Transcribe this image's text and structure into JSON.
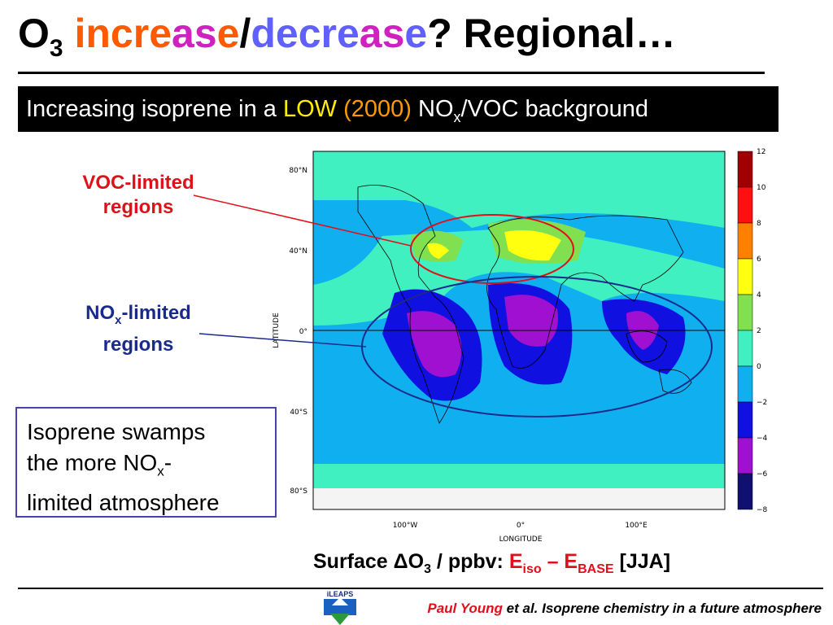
{
  "title": {
    "o": "O",
    "sub3": "3",
    "inc_parts": [
      "inc",
      "re",
      "as",
      "e"
    ],
    "slash": "/",
    "dec_parts": [
      "dec",
      "re",
      "as",
      "e"
    ],
    "rest": "? Regional…"
  },
  "banner": {
    "prefix": "Increasing isoprene in a ",
    "low": "LOW",
    "year": "(2000)",
    "nox": " NO",
    "x": "x",
    "suffix": "/VOC background"
  },
  "voc_label": {
    "line1": "VOC-limited",
    "line2": "regions"
  },
  "nox_label": {
    "no": "NO",
    "x": "x",
    "line1_rest": "-limited",
    "line2": "regions"
  },
  "box": {
    "line1": "Isoprene swamps",
    "line2a": "the more NO",
    "line2x": "x",
    "line2b": "-",
    "line3": "limited atmosphere"
  },
  "map": {
    "lat_labels": [
      "80°N",
      "40°N",
      "0°",
      "40°S",
      "80°S"
    ],
    "lon_labels": [
      "100°W",
      "0°",
      "100°E"
    ],
    "xlabel": "LONGITUDE",
    "ylabel": "LATITUDE",
    "colorbar_ticks": [
      "12",
      "10",
      "8",
      "6",
      "4",
      "2",
      "0",
      "−2",
      "−4",
      "−6",
      "−8"
    ],
    "colorbar_colors": [
      "#a00000",
      "#ff1010",
      "#ff7f00",
      "#ffff10",
      "#80e050",
      "#40f0c0",
      "#10b0f0",
      "#1010e0",
      "#a010d0",
      "#101070"
    ]
  },
  "caption": {
    "pre": "Surface ΔO",
    "sub3": "3",
    "mid": " / ppbv: ",
    "eiso": "E",
    "iso": "iso",
    "dash": " – ",
    "ebase": "E",
    "base": "BASE",
    "jja": " [JJA]"
  },
  "footer": {
    "author": "Paul Young",
    "rest": " et al. Isoprene chemistry in a future atmosphere"
  },
  "logo_text": "iLEAPS",
  "colors": {
    "accent_red": "#e0101a",
    "accent_blue": "#1a2a8a",
    "orange": "#ff5a00",
    "purple_blue": "#6060ff",
    "magenta": "#d020c0"
  }
}
